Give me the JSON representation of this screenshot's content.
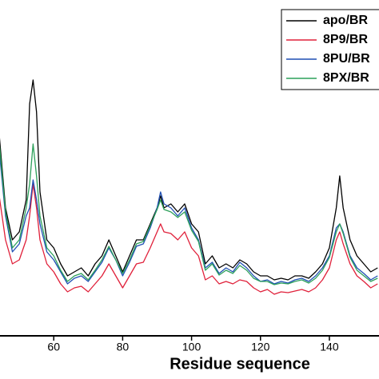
{
  "chart_data": {
    "type": "line",
    "x_label": "Residue sequence",
    "x": [
      44,
      46,
      48,
      50,
      52,
      53,
      54,
      55,
      56,
      58,
      60,
      62,
      64,
      66,
      68,
      70,
      72,
      74,
      76,
      78,
      80,
      82,
      84,
      86,
      88,
      90,
      91,
      92,
      94,
      96,
      98,
      100,
      102,
      104,
      106,
      108,
      110,
      112,
      114,
      116,
      118,
      120,
      122,
      124,
      126,
      128,
      130,
      132,
      134,
      136,
      138,
      140,
      142,
      143,
      144,
      146,
      148,
      150,
      152,
      154
    ],
    "xlim": [
      44.4,
      154.4
    ],
    "xticks": [
      60,
      80,
      100,
      120,
      140
    ],
    "ylim": [
      0,
      420
    ],
    "legend": "upper right",
    "series": [
      {
        "name": "apo/BR",
        "color": "#000000",
        "values": [
          260,
          160,
          120,
          130,
          170,
          290,
          320,
          280,
          180,
          120,
          110,
          90,
          75,
          80,
          85,
          75,
          90,
          100,
          120,
          100,
          80,
          100,
          120,
          120,
          140,
          160,
          175,
          160,
          165,
          155,
          165,
          140,
          130,
          90,
          100,
          85,
          90,
          85,
          95,
          90,
          80,
          75,
          75,
          70,
          72,
          70,
          75,
          75,
          72,
          80,
          90,
          110,
          160,
          200,
          160,
          120,
          100,
          90,
          80,
          85
        ]
      },
      {
        "name": "8P9/BR",
        "color": "#e0203a",
        "values": [
          180,
          120,
          90,
          95,
          120,
          150,
          190,
          160,
          120,
          90,
          80,
          65,
          55,
          60,
          62,
          55,
          65,
          75,
          90,
          75,
          60,
          75,
          90,
          92,
          110,
          130,
          140,
          130,
          128,
          120,
          130,
          110,
          100,
          70,
          75,
          65,
          68,
          65,
          70,
          68,
          60,
          55,
          58,
          52,
          55,
          54,
          56,
          58,
          55,
          60,
          70,
          85,
          120,
          130,
          115,
          90,
          75,
          68,
          60,
          65
        ]
      },
      {
        "name": "8PU/BR",
        "color": "#1f4fb4",
        "values": [
          240,
          150,
          105,
          115,
          150,
          160,
          195,
          170,
          140,
          105,
          95,
          80,
          65,
          72,
          75,
          68,
          80,
          92,
          110,
          95,
          75,
          92,
          112,
          115,
          135,
          160,
          180,
          165,
          160,
          150,
          160,
          135,
          120,
          85,
          92,
          78,
          85,
          80,
          92,
          85,
          75,
          68,
          70,
          65,
          68,
          66,
          70,
          72,
          68,
          75,
          85,
          100,
          135,
          140,
          130,
          100,
          85,
          78,
          70,
          75
        ]
      },
      {
        "name": "8PX/BR",
        "color": "#2ca05a",
        "values": [
          250,
          155,
          110,
          120,
          160,
          190,
          240,
          200,
          150,
          110,
          100,
          82,
          68,
          75,
          78,
          70,
          82,
          95,
          112,
          95,
          78,
          95,
          115,
          118,
          138,
          158,
          170,
          158,
          155,
          148,
          155,
          132,
          118,
          82,
          90,
          76,
          82,
          78,
          88,
          82,
          72,
          68,
          68,
          64,
          66,
          65,
          68,
          70,
          66,
          72,
          82,
          98,
          130,
          140,
          128,
          98,
          82,
          75,
          68,
          72
        ]
      }
    ]
  }
}
